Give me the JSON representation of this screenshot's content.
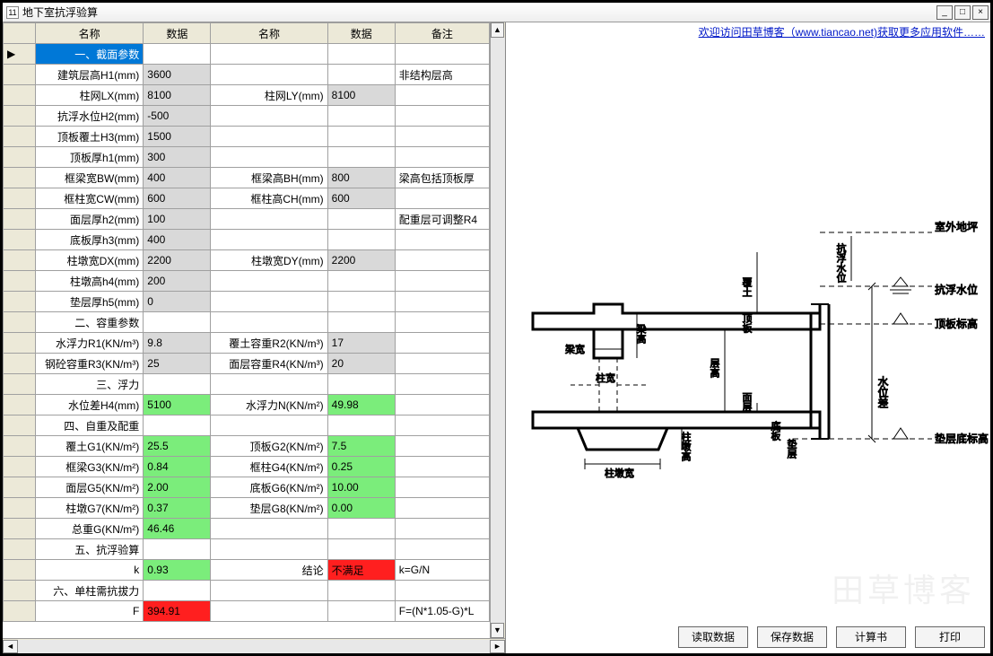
{
  "window": {
    "title": "地下室抗浮验算",
    "icon_text": "11"
  },
  "banner": {
    "text": "欢迎访问田草博客（www.tiancao.net)获取更多应用软件……"
  },
  "columns": {
    "name1": "名称",
    "data1": "数据",
    "name2": "名称",
    "data2": "数据",
    "remark": "备注"
  },
  "rows": [
    {
      "rowmark": "▶",
      "n1": "一、截面参数",
      "d1": "",
      "n2": "",
      "d2": "",
      "rm": "",
      "n1cls": "section-blue"
    },
    {
      "n1": "建筑层高H1(mm)",
      "d1": "3600",
      "d1cls": "cell-gray",
      "rm": "非结构层高"
    },
    {
      "n1": "柱网LX(mm)",
      "d1": "8100",
      "d1cls": "cell-gray",
      "n2": "柱网LY(mm)",
      "d2": "8100",
      "d2cls": "cell-gray"
    },
    {
      "n1": "抗浮水位H2(mm)",
      "d1": "-500",
      "d1cls": "cell-gray"
    },
    {
      "n1": "顶板覆土H3(mm)",
      "d1": "1500",
      "d1cls": "cell-gray"
    },
    {
      "n1": "顶板厚h1(mm)",
      "d1": "300",
      "d1cls": "cell-gray"
    },
    {
      "n1": "框梁宽BW(mm)",
      "d1": "400",
      "d1cls": "cell-gray",
      "n2": "框梁高BH(mm)",
      "d2": "800",
      "d2cls": "cell-gray",
      "rm": "梁高包括顶板厚"
    },
    {
      "n1": "框柱宽CW(mm)",
      "d1": "600",
      "d1cls": "cell-gray",
      "n2": "框柱高CH(mm)",
      "d2": "600",
      "d2cls": "cell-gray"
    },
    {
      "n1": "面层厚h2(mm)",
      "d1": "100",
      "d1cls": "cell-gray",
      "rm": "配重层可调整R4"
    },
    {
      "n1": "底板厚h3(mm)",
      "d1": "400",
      "d1cls": "cell-gray"
    },
    {
      "n1": "柱墩宽DX(mm)",
      "d1": "2200",
      "d1cls": "cell-gray",
      "n2": "柱墩宽DY(mm)",
      "d2": "2200",
      "d2cls": "cell-gray"
    },
    {
      "n1": "柱墩高h4(mm)",
      "d1": "200",
      "d1cls": "cell-gray"
    },
    {
      "n1": "垫层厚h5(mm)",
      "d1": "0",
      "d1cls": "cell-gray"
    },
    {
      "n1": "二、容重参数",
      "n1align": "left"
    },
    {
      "n1": "水浮力R1(KN/m³)",
      "d1": "9.8",
      "d1cls": "cell-gray",
      "n2": "覆土容重R2(KN/m³)",
      "d2": "17",
      "d2cls": "cell-gray"
    },
    {
      "n1": "钢砼容重R3(KN/m³)",
      "d1": "25",
      "d1cls": "cell-gray",
      "n2": "面层容重R4(KN/m³)",
      "d2": "20",
      "d2cls": "cell-gray"
    },
    {
      "n1": "三、浮力",
      "n1align": "left"
    },
    {
      "n1": "水位差H4(mm)",
      "d1": "5100",
      "d1cls": "cell-green",
      "n2": "水浮力N(KN/m²)",
      "d2": "49.98",
      "d2cls": "cell-green"
    },
    {
      "n1": "四、自重及配重",
      "n1align": "left"
    },
    {
      "n1": "覆土G1(KN/m²)",
      "d1": "25.5",
      "d1cls": "cell-green",
      "n2": "顶板G2(KN/m²)",
      "d2": "7.5",
      "d2cls": "cell-green"
    },
    {
      "n1": "框梁G3(KN/m²)",
      "d1": "0.84",
      "d1cls": "cell-green",
      "n2": "框柱G4(KN/m²)",
      "d2": "0.25",
      "d2cls": "cell-green"
    },
    {
      "n1": "面层G5(KN/m²)",
      "d1": "2.00",
      "d1cls": "cell-green",
      "n2": "底板G6(KN/m²)",
      "d2": "10.00",
      "d2cls": "cell-green"
    },
    {
      "n1": "柱墩G7(KN/m²)",
      "d1": "0.37",
      "d1cls": "cell-green",
      "n2": "垫层G8(KN/m²)",
      "d2": "0.00",
      "d2cls": "cell-green"
    },
    {
      "n1": "总重G(KN/m²)",
      "d1": "46.46",
      "d1cls": "cell-green"
    },
    {
      "n1": "五、抗浮验算",
      "n1align": "left"
    },
    {
      "n1": "k",
      "d1": "0.93",
      "d1cls": "cell-green",
      "n2": "结论",
      "d2": "不满足",
      "d2cls": "cell-red",
      "rm": "k=G/N"
    },
    {
      "n1": "六、单柱需抗拔力",
      "n1align": "left"
    },
    {
      "n1": "F",
      "d1": "394.91",
      "d1cls": "cell-red",
      "rm": "F=(N*1.05-G)*L"
    }
  ],
  "buttons": {
    "read": "读取数据",
    "save": "保存数据",
    "calc": "计算书",
    "print": "打印"
  },
  "diagram": {
    "labels": {
      "outdoor": "室外地坪",
      "floating_level": "抗浮水位",
      "top_plate": "顶板标高",
      "water_diff": "水位差",
      "bed_bottom": "垫层底标高",
      "cover_soil": "覆土",
      "beam_w": "梁宽",
      "beam_h": "梁高",
      "col_w": "柱宽",
      "story_h": "层高",
      "surface": "面层",
      "top_plate2": "顶板",
      "bottom_plate": "底板",
      "bed_layer": "垫层",
      "pier_w": "柱墩宽",
      "pier_h": "柱墩高",
      "floating_level_v": "抗浮水位"
    },
    "colors": {
      "line": "#000000",
      "dash": "#000000",
      "text": "#000000"
    }
  },
  "watermark": "田草博客"
}
